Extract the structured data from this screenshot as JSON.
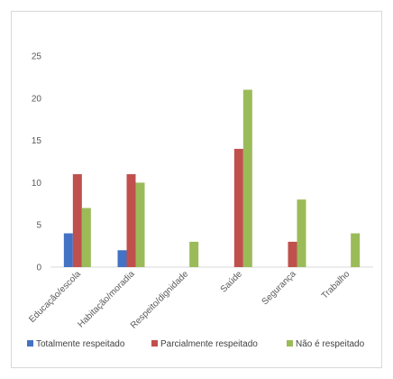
{
  "chart_data": {
    "type": "bar",
    "categories": [
      "Educação/escola",
      "Habitação/moradia",
      "Respeito/dignidade",
      "Saúde",
      "Segurança",
      "Trabalho"
    ],
    "series": [
      {
        "name": "Totalmente respeitado",
        "color": "#4472c4",
        "values": [
          4,
          2,
          0,
          0,
          0,
          0
        ]
      },
      {
        "name": "Parcialmente respeitado",
        "color": "#c0504d",
        "values": [
          11,
          11,
          0,
          14,
          3,
          0
        ]
      },
      {
        "name": "Não é respeitado",
        "color": "#9bbb59",
        "values": [
          7,
          10,
          3,
          21,
          8,
          4
        ]
      }
    ],
    "title": "",
    "xlabel": "",
    "ylabel": "",
    "ylim": [
      0,
      25
    ],
    "yticks": [
      "0",
      "5",
      "10",
      "15",
      "20",
      "25"
    ],
    "grid": false,
    "legend_position": "bottom"
  }
}
